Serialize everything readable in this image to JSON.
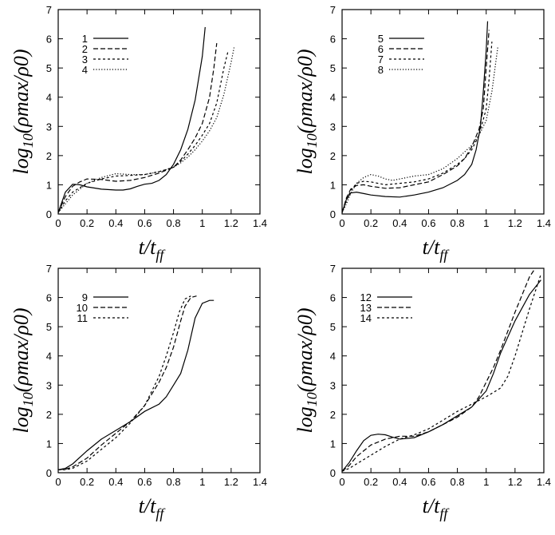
{
  "chart_data": [
    {
      "type": "line",
      "panel": "top-left",
      "xlabel": "t/t_ff",
      "ylabel": "log10(ρmax/ρ0)",
      "xlim": [
        0,
        1.4
      ],
      "ylim": [
        0,
        7
      ],
      "xticks": [
        "0",
        "0.2",
        "0.4",
        "0.6",
        "0.8",
        "1",
        "1.2",
        "1.4"
      ],
      "yticks": [
        "0",
        "1",
        "2",
        "3",
        "4",
        "5",
        "6",
        "7"
      ],
      "legend_position": "top-left",
      "series": [
        {
          "name": "1",
          "style": "solid",
          "x": [
            0,
            0.05,
            0.1,
            0.15,
            0.2,
            0.3,
            0.4,
            0.45,
            0.5,
            0.55,
            0.6,
            0.65,
            0.7,
            0.75,
            0.8,
            0.85,
            0.9,
            0.95,
            1.0,
            1.02
          ],
          "y": [
            0.05,
            0.75,
            1.02,
            1.0,
            0.93,
            0.85,
            0.82,
            0.82,
            0.86,
            0.95,
            1.02,
            1.05,
            1.15,
            1.35,
            1.7,
            2.2,
            2.9,
            3.9,
            5.4,
            6.4
          ]
        },
        {
          "name": "2",
          "style": "dashed",
          "x": [
            0,
            0.05,
            0.1,
            0.15,
            0.2,
            0.3,
            0.4,
            0.5,
            0.6,
            0.7,
            0.8,
            0.85,
            0.9,
            0.95,
            1.0,
            1.05,
            1.08,
            1.1
          ],
          "y": [
            0.05,
            0.6,
            0.95,
            1.1,
            1.2,
            1.18,
            1.12,
            1.15,
            1.25,
            1.4,
            1.6,
            1.85,
            2.2,
            2.6,
            3.1,
            4.0,
            5.0,
            5.85
          ]
        },
        {
          "name": "3",
          "style": "dotted",
          "x": [
            0,
            0.05,
            0.1,
            0.2,
            0.3,
            0.4,
            0.5,
            0.6,
            0.7,
            0.8,
            0.85,
            0.9,
            0.95,
            1.0,
            1.05,
            1.1,
            1.15,
            1.18
          ],
          "y": [
            0.05,
            0.45,
            0.75,
            1.05,
            1.2,
            1.3,
            1.32,
            1.35,
            1.45,
            1.6,
            1.8,
            2.05,
            2.35,
            2.7,
            3.1,
            3.8,
            5.0,
            5.6
          ]
        },
        {
          "name": "4",
          "style": "loose-dotted",
          "x": [
            0,
            0.05,
            0.1,
            0.2,
            0.3,
            0.4,
            0.5,
            0.6,
            0.7,
            0.8,
            0.85,
            0.9,
            0.95,
            1.0,
            1.05,
            1.1,
            1.15,
            1.2,
            1.22
          ],
          "y": [
            0.05,
            0.35,
            0.65,
            1.05,
            1.25,
            1.38,
            1.35,
            1.35,
            1.45,
            1.6,
            1.75,
            1.95,
            2.2,
            2.5,
            2.85,
            3.3,
            4.1,
            5.2,
            5.7
          ]
        }
      ]
    },
    {
      "type": "line",
      "panel": "top-right",
      "xlabel": "t/t_ff",
      "ylabel": "log10(ρmax/ρ0)",
      "xlim": [
        0,
        1.4
      ],
      "ylim": [
        0,
        7
      ],
      "xticks": [
        "0",
        "0.2",
        "0.4",
        "0.6",
        "0.8",
        "1",
        "1.2",
        "1.4"
      ],
      "yticks": [
        "0",
        "1",
        "2",
        "3",
        "4",
        "5",
        "6",
        "7"
      ],
      "legend_position": "top-right",
      "series": [
        {
          "name": "5",
          "style": "solid",
          "x": [
            0,
            0.03,
            0.06,
            0.1,
            0.15,
            0.2,
            0.3,
            0.4,
            0.5,
            0.6,
            0.7,
            0.8,
            0.85,
            0.9,
            0.93,
            0.96,
            0.98,
            1.0,
            1.01
          ],
          "y": [
            0.05,
            0.5,
            0.72,
            0.75,
            0.7,
            0.65,
            0.6,
            0.58,
            0.65,
            0.75,
            0.9,
            1.15,
            1.35,
            1.7,
            2.2,
            3.0,
            4.2,
            5.6,
            6.6
          ]
        },
        {
          "name": "6",
          "style": "dashed",
          "x": [
            0,
            0.03,
            0.06,
            0.1,
            0.15,
            0.2,
            0.3,
            0.4,
            0.5,
            0.6,
            0.7,
            0.8,
            0.85,
            0.9,
            0.95,
            0.98,
            1.0,
            1.02
          ],
          "y": [
            0.05,
            0.55,
            0.85,
            0.98,
            1.0,
            0.95,
            0.88,
            0.9,
            1.0,
            1.1,
            1.35,
            1.65,
            1.9,
            2.3,
            2.9,
            3.6,
            5.0,
            6.3
          ]
        },
        {
          "name": "7",
          "style": "dotted",
          "x": [
            0,
            0.03,
            0.06,
            0.1,
            0.15,
            0.2,
            0.25,
            0.3,
            0.4,
            0.5,
            0.6,
            0.7,
            0.8,
            0.85,
            0.9,
            0.95,
            1.0,
            1.02,
            1.04
          ],
          "y": [
            0.05,
            0.45,
            0.8,
            1.05,
            1.12,
            1.1,
            1.05,
            1.0,
            1.05,
            1.1,
            1.2,
            1.4,
            1.7,
            1.9,
            2.2,
            2.7,
            3.6,
            4.6,
            5.9
          ]
        },
        {
          "name": "8",
          "style": "loose-dotted",
          "x": [
            0,
            0.03,
            0.06,
            0.1,
            0.15,
            0.2,
            0.25,
            0.3,
            0.35,
            0.4,
            0.5,
            0.6,
            0.7,
            0.8,
            0.9,
            0.95,
            1.0,
            1.04,
            1.08
          ],
          "y": [
            0.05,
            0.35,
            0.7,
            1.05,
            1.25,
            1.35,
            1.3,
            1.2,
            1.15,
            1.2,
            1.3,
            1.35,
            1.55,
            1.9,
            2.35,
            2.7,
            3.2,
            4.2,
            5.7
          ]
        }
      ]
    },
    {
      "type": "line",
      "panel": "bottom-left",
      "xlabel": "t/t_ff",
      "ylabel": "log10(ρmax/ρ0)",
      "xlim": [
        0,
        1.4
      ],
      "ylim": [
        0,
        7
      ],
      "xticks": [
        "0",
        "0.2",
        "0.4",
        "0.6",
        "0.8",
        "1",
        "1.2",
        "1.4"
      ],
      "yticks": [
        "0",
        "1",
        "2",
        "3",
        "4",
        "5",
        "6",
        "7"
      ],
      "legend_position": "top-left",
      "series": [
        {
          "name": "9",
          "style": "solid",
          "x": [
            0,
            0.05,
            0.1,
            0.2,
            0.3,
            0.4,
            0.5,
            0.6,
            0.7,
            0.75,
            0.8,
            0.85,
            0.9,
            0.95,
            1.0,
            1.05,
            1.08
          ],
          "y": [
            0.1,
            0.15,
            0.3,
            0.75,
            1.15,
            1.45,
            1.75,
            2.1,
            2.35,
            2.6,
            3.0,
            3.4,
            4.2,
            5.3,
            5.8,
            5.9,
            5.9
          ]
        },
        {
          "name": "10",
          "style": "dashed",
          "x": [
            0,
            0.05,
            0.1,
            0.2,
            0.3,
            0.4,
            0.5,
            0.6,
            0.65,
            0.7,
            0.75,
            0.8,
            0.85,
            0.88,
            0.92,
            0.96
          ],
          "y": [
            0.1,
            0.12,
            0.2,
            0.5,
            0.95,
            1.35,
            1.75,
            2.3,
            2.7,
            3.1,
            3.6,
            4.3,
            5.2,
            5.7,
            6.0,
            6.05
          ]
        },
        {
          "name": "11",
          "style": "dotted",
          "x": [
            0,
            0.05,
            0.1,
            0.2,
            0.3,
            0.4,
            0.5,
            0.6,
            0.65,
            0.7,
            0.75,
            0.8,
            0.84,
            0.88,
            0.92
          ],
          "y": [
            0.1,
            0.1,
            0.15,
            0.4,
            0.8,
            1.2,
            1.7,
            2.3,
            2.8,
            3.3,
            4.0,
            4.8,
            5.5,
            5.95,
            6.05
          ]
        }
      ]
    },
    {
      "type": "line",
      "panel": "bottom-right",
      "xlabel": "t/t_ff",
      "ylabel": "log10(ρmax/ρ0)",
      "xlim": [
        0,
        1.4
      ],
      "ylim": [
        0,
        7
      ],
      "xticks": [
        "0",
        "0.2",
        "0.4",
        "0.6",
        "0.8",
        "1",
        "1.2",
        "1.4"
      ],
      "yticks": [
        "0",
        "1",
        "2",
        "3",
        "4",
        "5",
        "6",
        "7"
      ],
      "legend_position": "top-left",
      "series": [
        {
          "name": "12",
          "style": "solid",
          "x": [
            0,
            0.05,
            0.1,
            0.15,
            0.2,
            0.25,
            0.3,
            0.35,
            0.4,
            0.5,
            0.6,
            0.7,
            0.8,
            0.9,
            1.0,
            1.05,
            1.1,
            1.2,
            1.3,
            1.38
          ],
          "y": [
            0.05,
            0.35,
            0.75,
            1.1,
            1.28,
            1.32,
            1.3,
            1.22,
            1.15,
            1.2,
            1.4,
            1.65,
            1.95,
            2.25,
            2.8,
            3.4,
            4.1,
            5.2,
            6.1,
            6.6
          ]
        },
        {
          "name": "13",
          "style": "dashed",
          "x": [
            0,
            0.05,
            0.1,
            0.2,
            0.3,
            0.4,
            0.5,
            0.6,
            0.7,
            0.8,
            0.9,
            0.95,
            1.0,
            1.05,
            1.1,
            1.2,
            1.3,
            1.34
          ],
          "y": [
            0.05,
            0.25,
            0.55,
            0.95,
            1.15,
            1.25,
            1.25,
            1.4,
            1.65,
            1.9,
            2.25,
            2.6,
            3.1,
            3.6,
            4.2,
            5.5,
            6.7,
            7.0
          ]
        },
        {
          "name": "14",
          "style": "dotted",
          "x": [
            0,
            0.05,
            0.1,
            0.2,
            0.3,
            0.4,
            0.5,
            0.6,
            0.7,
            0.8,
            0.9,
            1.0,
            1.05,
            1.1,
            1.15,
            1.2,
            1.3,
            1.38
          ],
          "y": [
            0.05,
            0.15,
            0.3,
            0.6,
            0.9,
            1.15,
            1.3,
            1.5,
            1.8,
            2.1,
            2.35,
            2.6,
            2.75,
            2.9,
            3.3,
            4.0,
            5.6,
            6.8
          ]
        }
      ]
    }
  ]
}
